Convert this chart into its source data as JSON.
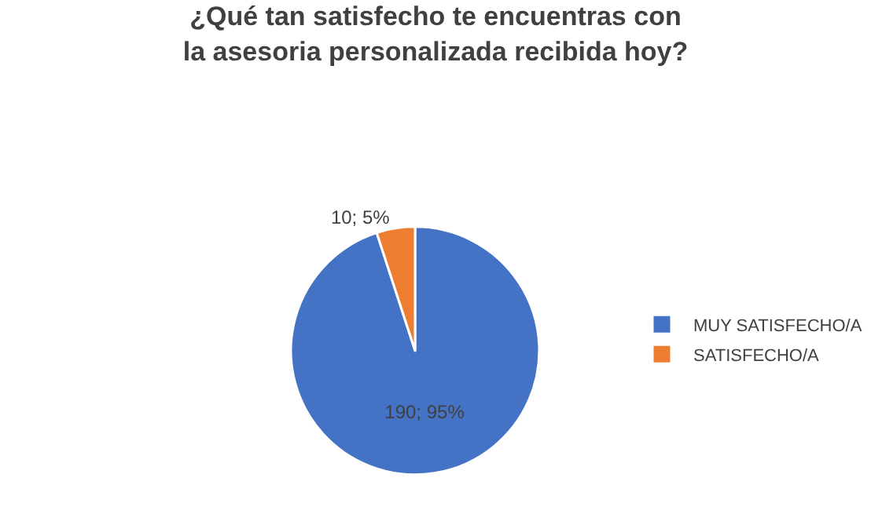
{
  "chart_data": {
    "type": "pie",
    "title": "¿Qué tan satisfecho te encuentras con la asesoria personalizada recibida hoy?",
    "categories": [
      "MUY SATISFECHO/A",
      "SATISFECHO/A"
    ],
    "values": [
      190,
      10
    ],
    "colors": [
      "#4472c4",
      "#ed7d31"
    ],
    "value_labels": [
      "190; 95%",
      "10; 5%"
    ],
    "legend": "right"
  }
}
